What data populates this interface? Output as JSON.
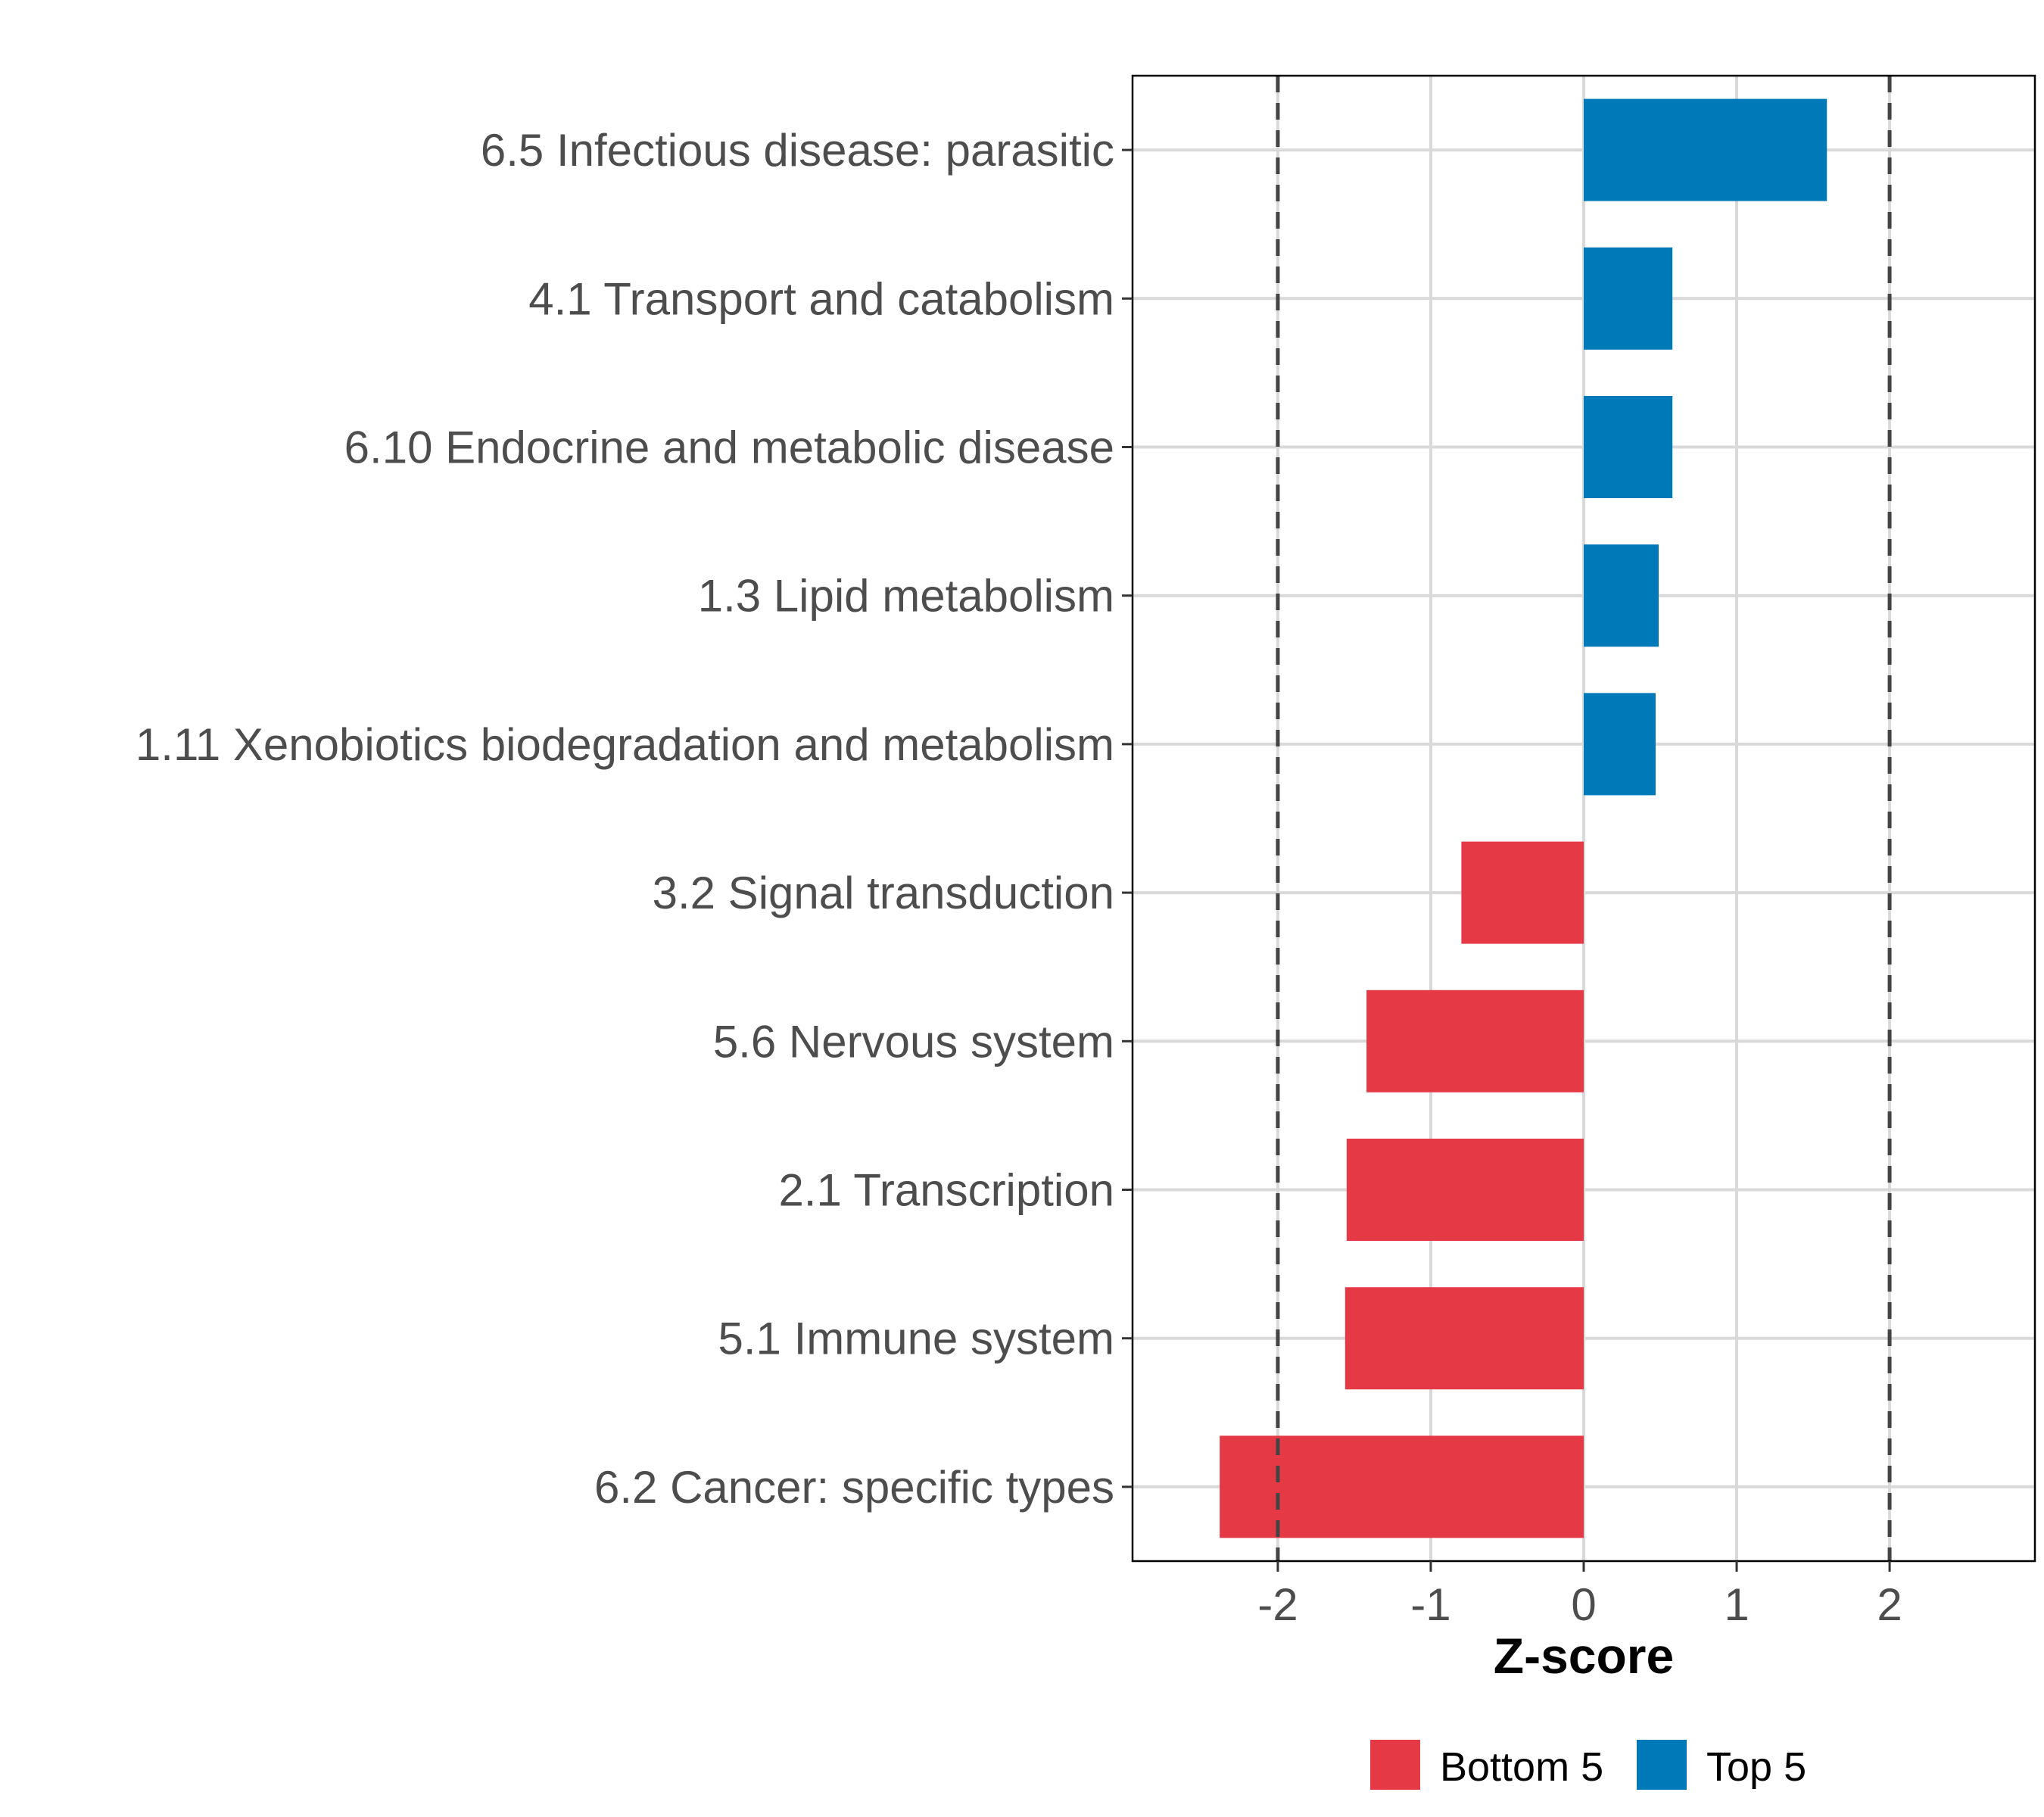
{
  "chart_data": {
    "type": "bar",
    "orientation": "horizontal",
    "title": "",
    "xlabel": "Z-score",
    "ylabel": "",
    "xlim": [
      -2.95,
      2.95
    ],
    "xticks": [
      -2,
      -1,
      0,
      1,
      2
    ],
    "xtick_labels": [
      "-2",
      "-1",
      "0",
      "1",
      "2"
    ],
    "reference_lines": [
      -2,
      2
    ],
    "grid": true,
    "categories": [
      "6.5 Infectious disease: parasitic",
      "4.1 Transport and catabolism",
      "6.10 Endocrine and metabolic disease",
      "1.3 Lipid metabolism",
      "1.11 Xenobiotics biodegradation and metabolism",
      "3.2 Signal transduction",
      "5.6 Nervous system",
      "2.1 Transcription",
      "5.1 Immune system",
      "6.2 Cancer: specific types"
    ],
    "values": [
      1.59,
      0.58,
      0.58,
      0.49,
      0.47,
      -0.8,
      -1.42,
      -1.55,
      -1.56,
      -2.38
    ],
    "groups": [
      "Top 5",
      "Top 5",
      "Top 5",
      "Top 5",
      "Top 5",
      "Bottom 5",
      "Bottom 5",
      "Bottom 5",
      "Bottom 5",
      "Bottom 5"
    ],
    "legend": {
      "position": "bottom",
      "entries": [
        {
          "label": "Bottom 5",
          "color": "#E63946"
        },
        {
          "label": "Top 5",
          "color": "#0079B8"
        }
      ]
    }
  }
}
